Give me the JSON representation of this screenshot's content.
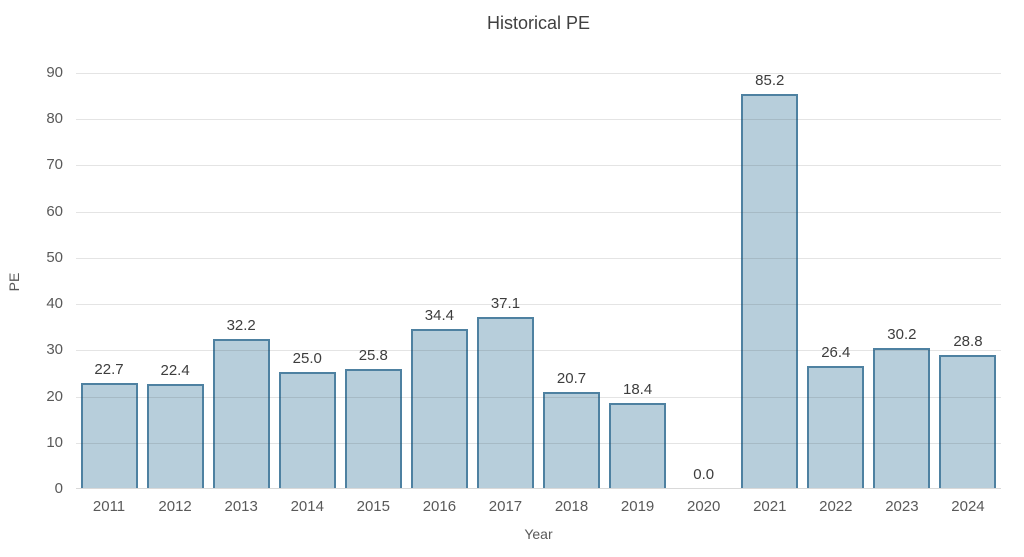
{
  "chart_data": {
    "type": "bar",
    "title": "Historical PE",
    "xlabel": "Year",
    "ylabel": "PE",
    "categories": [
      "2011",
      "2012",
      "2013",
      "2014",
      "2015",
      "2016",
      "2017",
      "2018",
      "2019",
      "2020",
      "2021",
      "2022",
      "2023",
      "2024"
    ],
    "values": [
      22.7,
      22.4,
      32.2,
      25.0,
      25.8,
      34.4,
      37.1,
      20.7,
      18.4,
      0.0,
      85.2,
      26.4,
      30.2,
      28.8
    ],
    "value_labels": [
      "22.7",
      "22.4",
      "32.2",
      "25.0",
      "25.8",
      "34.4",
      "37.1",
      "20.7",
      "18.4",
      "0.0",
      "85.2",
      "26.4",
      "30.2",
      "28.8"
    ],
    "ylim": [
      0,
      90
    ],
    "ytick_step": 10,
    "ytick_labels": [
      "0",
      "10",
      "20",
      "30",
      "40",
      "50",
      "60",
      "70",
      "80",
      "90"
    ],
    "grid": "horizontal",
    "legend": "none",
    "colors": {
      "bar_fill": "#b7cedb",
      "bar_border": "#4e81a1",
      "gridline": "#e2e2e2",
      "axis_line": "#d9d9d9",
      "title_text": "#404040",
      "tick_text": "#595959",
      "value_label_text": "#3d3d3d",
      "background": "#ffffff"
    }
  }
}
